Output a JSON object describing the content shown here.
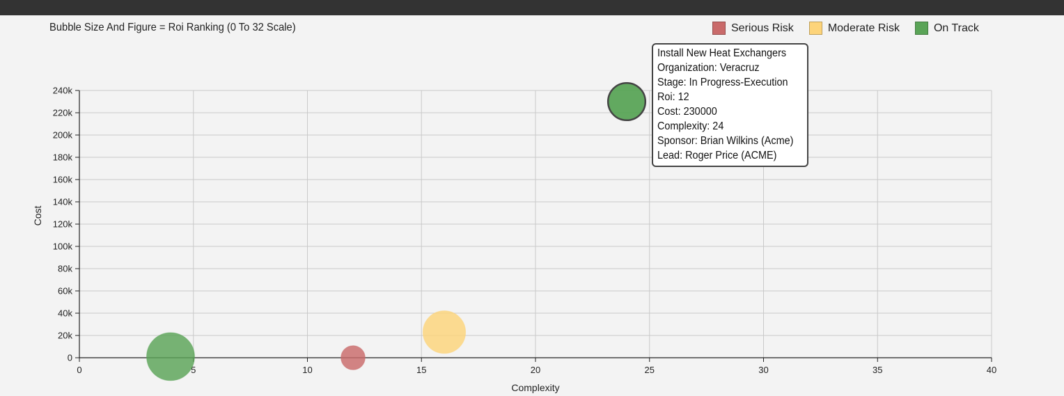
{
  "subtitle": "Bubble Size And Figure = Roi Ranking (0 To 32 Scale)",
  "legend": [
    {
      "label": "Serious Risk",
      "color": "#c96a6a"
    },
    {
      "label": "Moderate Risk",
      "color": "#fdd47a"
    },
    {
      "label": "On Track",
      "color": "#5aa457"
    }
  ],
  "tooltip": {
    "lines": [
      "Install New Heat Exchangers",
      "Organization: Veracruz",
      "Stage: In Progress-Execution",
      "Roi: 12",
      "Cost: 230000",
      "Complexity: 24",
      "Sponsor: Brian Wilkins (Acme)",
      "Lead: Roger Price (ACME)"
    ]
  },
  "chart_data": {
    "type": "scatter",
    "subtitle": "Bubble Size And Figure = Roi Ranking (0 To 32 Scale)",
    "xlabel": "Complexity",
    "ylabel": "Cost",
    "xlim": [
      0,
      40
    ],
    "ylim": [
      0,
      240000
    ],
    "x_ticks": [
      0,
      5,
      10,
      15,
      20,
      25,
      30,
      35,
      40
    ],
    "x_tick_labels": [
      "0",
      "5",
      "10",
      "15",
      "20",
      "25",
      "30",
      "35",
      "40"
    ],
    "y_ticks": [
      0,
      20000,
      40000,
      60000,
      80000,
      100000,
      120000,
      140000,
      160000,
      180000,
      200000,
      220000,
      240000
    ],
    "y_tick_labels": [
      "0",
      "20k",
      "40k",
      "60k",
      "80k",
      "100k",
      "120k",
      "140k",
      "160k",
      "180k",
      "200k",
      "220k",
      "240k"
    ],
    "grid": true,
    "legend_position": "top-right",
    "series": [
      {
        "name": "Serious Risk",
        "color": "#c96a6a",
        "points": [
          {
            "x": 12,
            "y": 0,
            "roi": 7
          }
        ]
      },
      {
        "name": "Moderate Risk",
        "color": "#fdd47a",
        "points": [
          {
            "x": 16,
            "y": 23000,
            "roi": 14
          }
        ]
      },
      {
        "name": "On Track",
        "color": "#5aa457",
        "points": [
          {
            "x": 4,
            "y": 1000,
            "roi": 16
          },
          {
            "x": 24,
            "y": 230000,
            "roi": 12,
            "highlighted": true
          }
        ]
      }
    ]
  }
}
